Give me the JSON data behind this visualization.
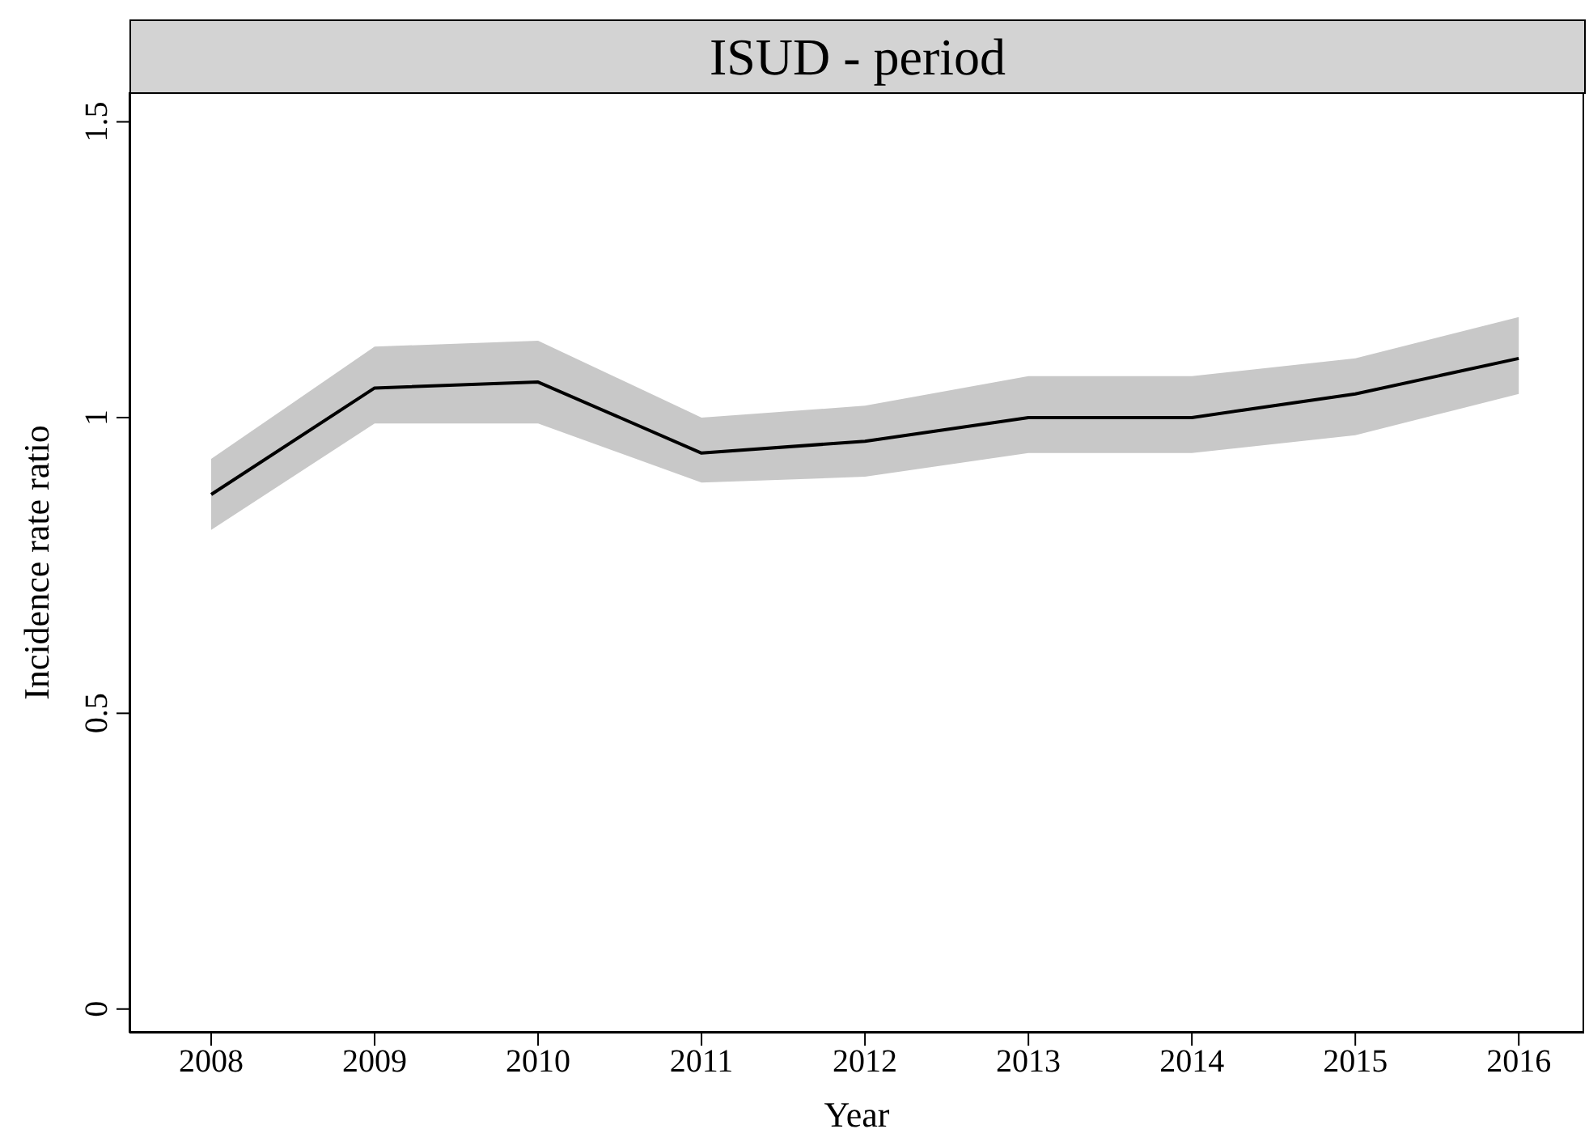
{
  "chart_data": {
    "type": "line",
    "title": "ISUD - period",
    "xlabel": "Year",
    "ylabel": "Incidence rate ratio",
    "x": [
      2008,
      2009,
      2010,
      2011,
      2012,
      2013,
      2014,
      2015,
      2016
    ],
    "series": [
      {
        "color": "#000000",
        "values": [
          0.87,
          1.05,
          1.06,
          0.94,
          0.96,
          1.0,
          1.0,
          1.04,
          1.1
        ],
        "lower": [
          0.81,
          0.99,
          0.99,
          0.89,
          0.9,
          0.94,
          0.94,
          0.97,
          1.04
        ],
        "upper": [
          0.93,
          1.12,
          1.13,
          1.0,
          1.02,
          1.07,
          1.07,
          1.1,
          1.17
        ]
      }
    ],
    "xlim": [
      2007.5,
      2016.4
    ],
    "xticks": [
      2008,
      2009,
      2010,
      2011,
      2012,
      2013,
      2014,
      2015,
      2016
    ],
    "ylim": [
      -0.04,
      1.55
    ],
    "yticks": [
      0,
      0.5,
      1,
      1.5
    ]
  }
}
